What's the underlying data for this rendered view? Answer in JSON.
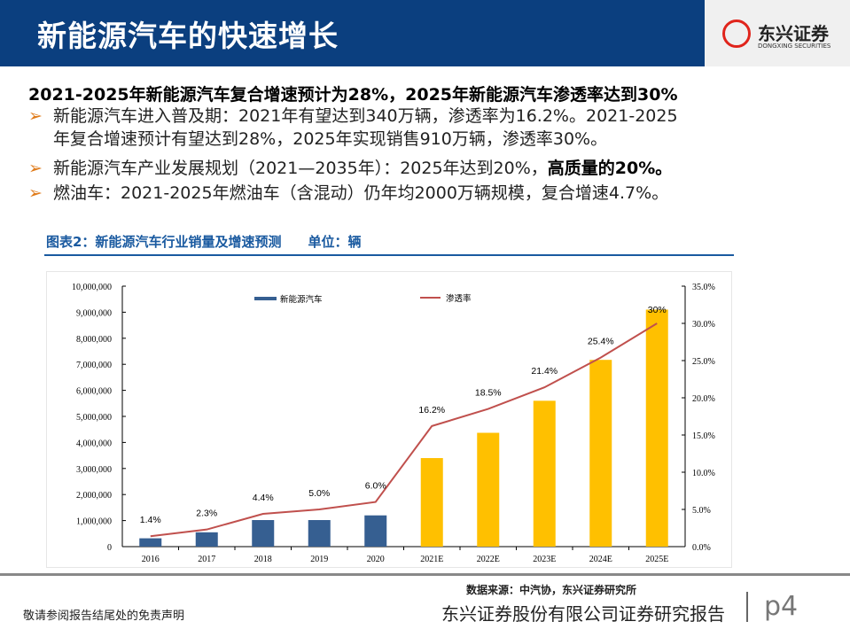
{
  "header": {
    "title": "新能源汽车的快速增长",
    "logo_cn": "东兴证券",
    "logo_en": "DONGXING SECURITIES"
  },
  "subtitle": "2021-2025年新能源汽车复合增速预计为28%，2025年新能源汽车渗透率达到30%",
  "bullets": [
    {
      "line1": "新能源汽车进入普及期：2021年有望达到340万辆，渗透率为16.2%。2021-2025",
      "line2": "年复合增速预计有望达到28%，2025年实现销售910万辆，渗透率30%。"
    },
    {
      "text": "新能源汽车产业发展规划（2021—2035年）：2025年达到20%，",
      "bold": "高质量的20%。"
    },
    {
      "text": "燃油车：2021-2025年燃油车（含混动）仍年均2000万辆规模，复合增速4.7%。"
    }
  ],
  "chart_title": "图表2：新能源汽车行业销量及增速预测　　单位：辆",
  "chart_data": {
    "type": "bar+line",
    "categories": [
      "2016",
      "2017",
      "2018",
      "2019",
      "2020",
      "2021E",
      "2022E",
      "2023E",
      "2024E",
      "2025E"
    ],
    "series": [
      {
        "name": "新能源汽车",
        "type": "bar",
        "axis": "left",
        "values": [
          320000,
          550000,
          1020000,
          1020000,
          1200000,
          3400000,
          4370000,
          5600000,
          7170000,
          9100000
        ],
        "colors": {
          "actual": "#365f91",
          "forecast": "#ffc000"
        }
      },
      {
        "name": "渗透率",
        "type": "line",
        "axis": "right",
        "values": [
          1.4,
          2.3,
          4.4,
          5.0,
          6.0,
          16.2,
          18.5,
          21.4,
          25.4,
          30
        ],
        "labels": [
          "1.4%",
          "2.3%",
          "4.4%",
          "5.0%",
          "6.0%",
          "16.2%",
          "18.5%",
          "21.4%",
          "25.4%",
          "30%"
        ],
        "color": "#c0504d"
      }
    ],
    "y_left": {
      "range": [
        0,
        10000000
      ],
      "ticks": [
        "0",
        "1,000,000",
        "2,000,000",
        "3,000,000",
        "4,000,000",
        "5,000,000",
        "6,000,000",
        "7,000,000",
        "8,000,000",
        "9,000,000",
        "10,000,000"
      ]
    },
    "y_right": {
      "range": [
        0,
        35
      ],
      "ticks": [
        "0.0%",
        "5.0%",
        "10.0%",
        "15.0%",
        "20.0%",
        "25.0%",
        "30.0%",
        "35.0%"
      ]
    },
    "legend": "top",
    "grid": false
  },
  "source": "数据来源：中汽协，东兴证券研究所",
  "footer": {
    "company": "东兴证券股份有限公司证券研究报告",
    "page": "p4",
    "disclaimer": "敬请参阅报告结尾处的免责声明"
  }
}
